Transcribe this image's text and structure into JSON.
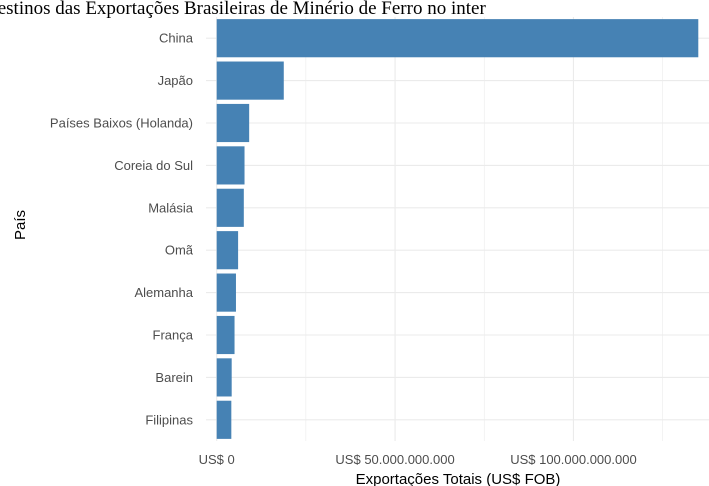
{
  "chart_data": {
    "type": "bar",
    "orientation": "horizontal",
    "title": "Destinos das Exportações Brasileiras de Minério de Ferro  no inter",
    "xlabel": "Exportações Totais (US$ FOB)",
    "ylabel": "País",
    "categories": [
      "China",
      "Japão",
      "Países Baixos (Holanda)",
      "Coreia do Sul",
      "Malásia",
      "Omã",
      "Alemanha",
      "França",
      "Barein",
      "Filipinas"
    ],
    "values": [
      135000000000,
      18800000000,
      9100000000,
      7800000000,
      7600000000,
      6000000000,
      5400000000,
      5000000000,
      4200000000,
      4100000000
    ],
    "xlim": [
      -3000000000,
      138000000000
    ],
    "xticks": [
      0,
      50000000000,
      100000000000
    ],
    "xtick_labels": [
      "US$ 0",
      "US$ 50.000.000.000",
      "US$ 100.000.000.000"
    ],
    "grid": true,
    "bar_color": "#4682B4",
    "grid_color": "#EBEBEB"
  }
}
